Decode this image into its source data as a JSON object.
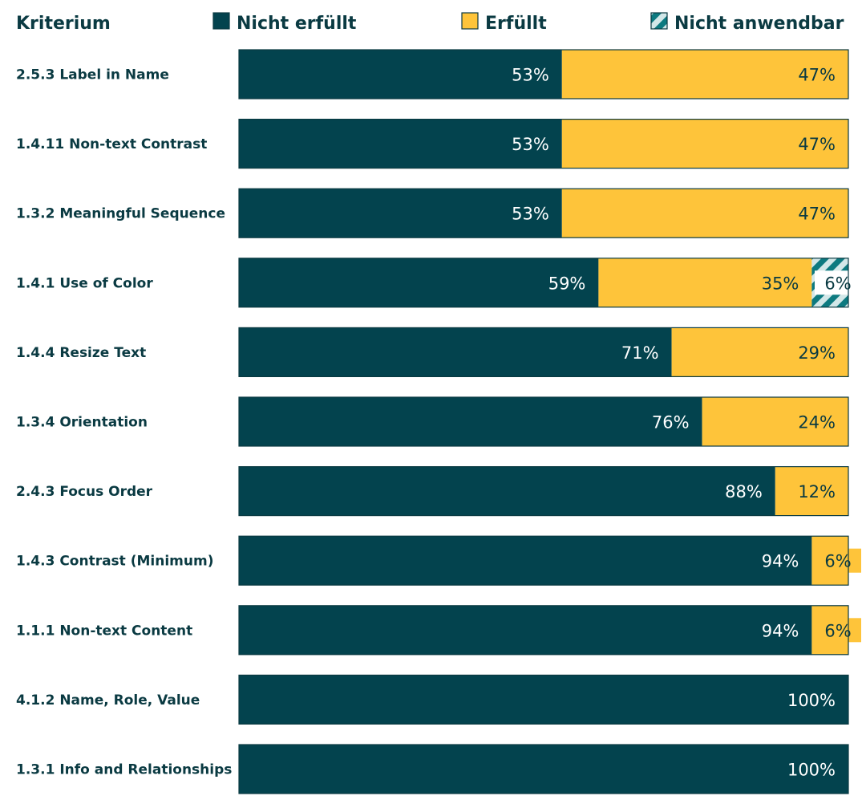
{
  "chart_data": {
    "type": "bar",
    "orientation": "horizontal",
    "stacked": true,
    "header_label": "Kriterium",
    "legend": [
      {
        "key": "fail",
        "label": "Nicht erfüllt",
        "color": "#03434e"
      },
      {
        "key": "pass",
        "label": "Erfüllt",
        "color": "#fec43a"
      },
      {
        "key": "na",
        "label": "Nicht anwendbar",
        "color": "#0d7a80",
        "pattern": "diagonal-stripes"
      }
    ],
    "legend_position": "top",
    "categories": [
      "2.5.3 Label in Name",
      "1.4.11 Non-text Contrast",
      "1.3.2 Meaningful Sequence",
      "1.4.1 Use of Color",
      "1.4.4 Resize Text",
      "1.3.4 Orientation",
      "2.4.3 Focus Order",
      "1.4.3 Contrast (Minimum)",
      "1.1.1 Non-text Content",
      "4.1.2 Name, Role, Value",
      "1.3.1 Info and Relationships"
    ],
    "series": [
      {
        "name": "Nicht erfüllt",
        "key": "fail",
        "values": [
          53,
          53,
          53,
          59,
          71,
          76,
          88,
          94,
          94,
          100,
          100
        ]
      },
      {
        "name": "Erfüllt",
        "key": "pass",
        "values": [
          47,
          47,
          47,
          35,
          29,
          24,
          12,
          6,
          6,
          0,
          0
        ]
      },
      {
        "name": "Nicht anwendbar",
        "key": "na",
        "values": [
          0,
          0,
          0,
          6,
          0,
          0,
          0,
          0,
          0,
          0,
          0
        ]
      }
    ],
    "value_suffix": "%",
    "xlim": [
      0,
      100
    ],
    "grid": false
  }
}
